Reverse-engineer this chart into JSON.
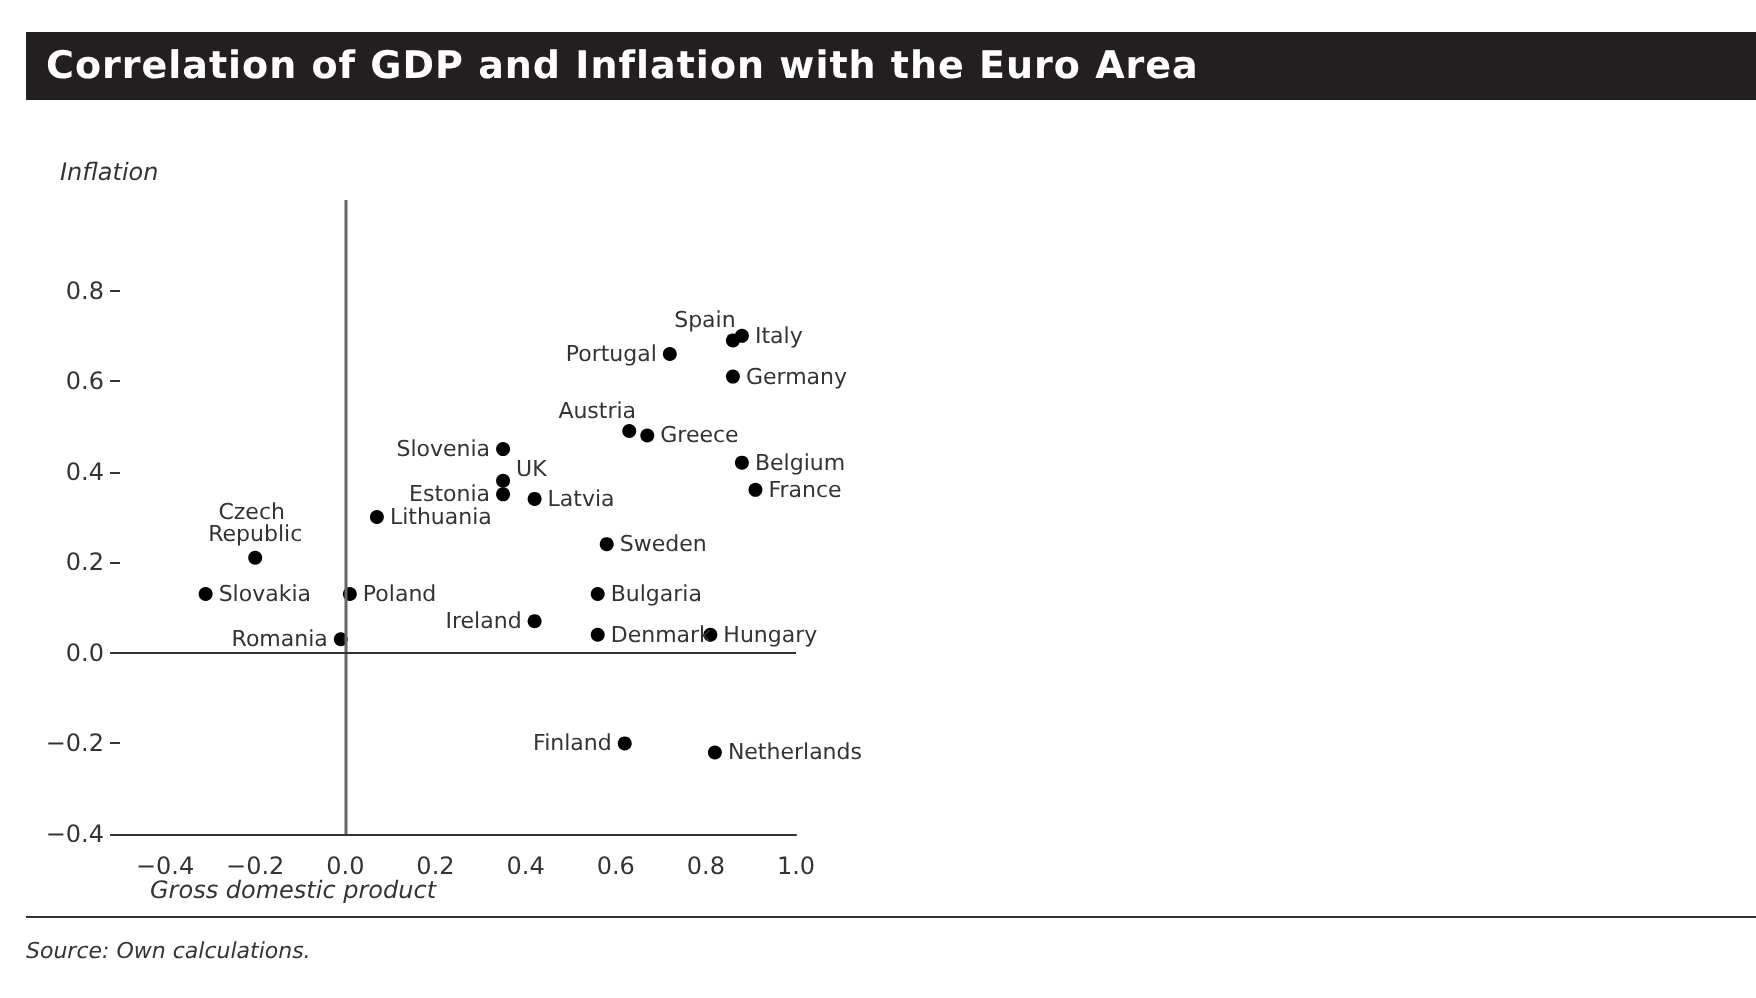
{
  "chart_data": {
    "type": "scatter",
    "title": "Correlation of GDP and Inflation with the Euro Area",
    "xlabel": "Gross domestic product",
    "ylabel": "Inflation",
    "annotations": [
      "Source: Own calculations."
    ],
    "marker": "circle",
    "grid": false,
    "ref_lines": [
      {
        "axis": "x",
        "value": 0,
        "color": "#666666"
      },
      {
        "axis": "y",
        "value": 0,
        "color": "#333333"
      }
    ],
    "xlim": [
      -0.5,
      1.0
    ],
    "ylim": [
      -0.4,
      1.0
    ],
    "xticks": [
      {
        "value": -0.4,
        "label": "−0.4"
      },
      {
        "value": -0.2,
        "label": "−0.2"
      },
      {
        "value": 0,
        "label": "0.0"
      },
      {
        "value": 0.2,
        "label": "0.2"
      },
      {
        "value": 0.4,
        "label": "0.4"
      },
      {
        "value": 0.6,
        "label": "0.6"
      },
      {
        "value": 0.8,
        "label": "0.8"
      },
      {
        "value": 1.0,
        "label": "1.0"
      }
    ],
    "yticks": [
      {
        "value": -0.4,
        "label": "−0.4"
      },
      {
        "value": -0.2,
        "label": "−0.2"
      },
      {
        "value": 0,
        "label": "0.0"
      },
      {
        "value": 0.2,
        "label": "0.2"
      },
      {
        "value": 0.4,
        "label": "0.4"
      },
      {
        "value": 0.6,
        "label": "0.6"
      },
      {
        "value": 0.8,
        "label": "0.8"
      }
    ],
    "series": [
      {
        "name": "Spain",
        "color": "#000000",
        "x": [
          0.86
        ],
        "values": [
          0.69
        ]
      },
      {
        "name": "Italy",
        "color": "#000000",
        "x": [
          0.88
        ],
        "values": [
          0.7
        ]
      },
      {
        "name": "Portugal",
        "color": "#000000",
        "x": [
          0.72
        ],
        "values": [
          0.66
        ]
      },
      {
        "name": "Germany",
        "color": "#000000",
        "x": [
          0.86
        ],
        "values": [
          0.61
        ]
      },
      {
        "name": "Austria",
        "color": "#000000",
        "x": [
          0.63
        ],
        "values": [
          0.49
        ]
      },
      {
        "name": "Greece",
        "color": "#000000",
        "x": [
          0.67
        ],
        "values": [
          0.48
        ]
      },
      {
        "name": "Slovenia",
        "color": "#000000",
        "x": [
          0.35
        ],
        "values": [
          0.45
        ]
      },
      {
        "name": "Belgium",
        "color": "#000000",
        "x": [
          0.88
        ],
        "values": [
          0.42
        ]
      },
      {
        "name": "UK",
        "color": "#000000",
        "x": [
          0.35
        ],
        "values": [
          0.38
        ]
      },
      {
        "name": "Estonia",
        "color": "#000000",
        "x": [
          0.35
        ],
        "values": [
          0.35
        ]
      },
      {
        "name": "Latvia",
        "color": "#000000",
        "x": [
          0.42
        ],
        "values": [
          0.34
        ]
      },
      {
        "name": "France",
        "color": "#000000",
        "x": [
          0.91
        ],
        "values": [
          0.36
        ]
      },
      {
        "name": "Lithuania",
        "color": "#000000",
        "x": [
          0.07
        ],
        "values": [
          0.3
        ]
      },
      {
        "name": "Sweden",
        "color": "#000000",
        "x": [
          0.58
        ],
        "values": [
          0.24
        ]
      },
      {
        "name": "Czech Republic",
        "color": "#000000",
        "x": [
          -0.2
        ],
        "values": [
          0.21
        ]
      },
      {
        "name": "Slovakia",
        "color": "#000000",
        "x": [
          -0.31
        ],
        "values": [
          0.13
        ]
      },
      {
        "name": "Poland",
        "color": "#000000",
        "x": [
          0.01
        ],
        "values": [
          0.13
        ]
      },
      {
        "name": "Bulgaria",
        "color": "#000000",
        "x": [
          0.56
        ],
        "values": [
          0.13
        ]
      },
      {
        "name": "Ireland",
        "color": "#000000",
        "x": [
          0.42
        ],
        "values": [
          0.07
        ]
      },
      {
        "name": "Denmark",
        "color": "#000000",
        "x": [
          0.56
        ],
        "values": [
          0.04
        ]
      },
      {
        "name": "Hungary",
        "color": "#000000",
        "x": [
          0.81
        ],
        "values": [
          0.04
        ]
      },
      {
        "name": "Romania",
        "color": "#000000",
        "x": [
          -0.01
        ],
        "values": [
          0.03
        ]
      },
      {
        "name": "Finland",
        "color": "#000000",
        "x": [
          0.62
        ],
        "values": [
          -0.2
        ]
      },
      {
        "name": "Netherlands",
        "color": "#000000",
        "x": [
          0.82
        ],
        "values": [
          -0.22
        ]
      }
    ]
  }
}
